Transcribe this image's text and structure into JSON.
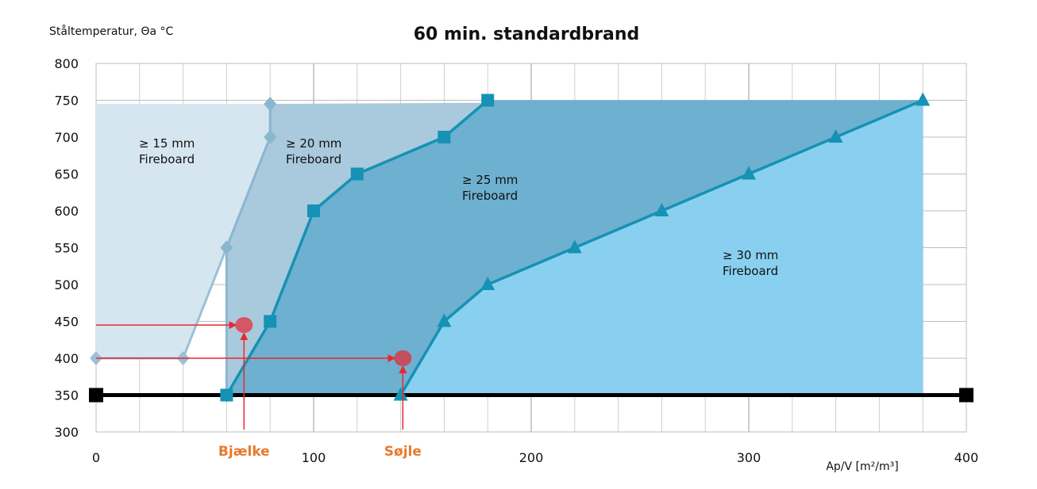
{
  "chart_data": {
    "type": "area",
    "title": "60 min. standardbrand",
    "ylabel": "Ståltemperatur, Θa °C",
    "xlabel": "Ap/V [m²/m³]",
    "xlim": [
      0,
      400
    ],
    "ylim": [
      300,
      800
    ],
    "x_ticks": [
      0,
      100,
      200,
      300,
      400
    ],
    "y_ticks": [
      300,
      350,
      400,
      450,
      500,
      550,
      600,
      650,
      700,
      750,
      800
    ],
    "grid": true,
    "series": [
      {
        "name": "≥ 15 mm\nFireboard",
        "color": "#d6e6f0",
        "line_color": "#9cc0d6",
        "marker": "diamond",
        "points": [
          [
            0,
            400
          ],
          [
            40,
            400
          ],
          [
            60,
            550
          ],
          [
            80,
            700
          ],
          [
            80,
            745
          ]
        ]
      },
      {
        "name": "≥ 20 mm\nFireboard",
        "color": "#a9c9dc",
        "line_color": "#8ab7d0",
        "marker": "diamond",
        "points": [
          [
            60,
            350
          ],
          [
            60,
            550
          ],
          [
            80,
            700
          ],
          [
            80,
            745
          ]
        ]
      },
      {
        "name": "≥ 25 mm\nFireboard",
        "color": "#6eb0d0",
        "line_color": "#1592b4",
        "marker": "square",
        "points": [
          [
            60,
            350
          ],
          [
            80,
            450
          ],
          [
            100,
            600
          ],
          [
            120,
            650
          ],
          [
            160,
            700
          ],
          [
            180,
            750
          ]
        ]
      },
      {
        "name": "≥ 30 mm\nFireboard",
        "color": "#89d0f0",
        "line_color": "#1592b4",
        "marker": "triangle",
        "points": [
          [
            140,
            350
          ],
          [
            160,
            450
          ],
          [
            180,
            500
          ],
          [
            220,
            550
          ],
          [
            260,
            600
          ],
          [
            300,
            650
          ],
          [
            340,
            700
          ],
          [
            380,
            750
          ]
        ]
      }
    ],
    "baseline": {
      "y": 350,
      "x_from": 0,
      "x_to": 400,
      "color": "#000000"
    },
    "callouts": [
      {
        "label": "Bjælke",
        "x": 68,
        "y": 445
      },
      {
        "label": "Søjle",
        "x": 141,
        "y": 400
      }
    ],
    "accent_color": "#e8272e",
    "callout_color": "#e8792b"
  }
}
